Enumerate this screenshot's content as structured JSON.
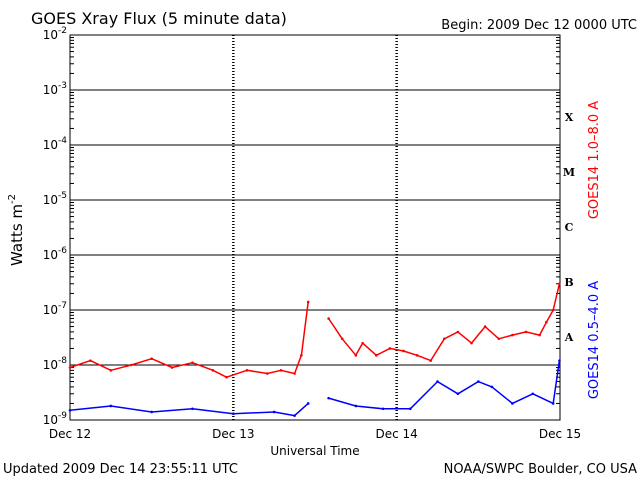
{
  "chart_data": {
    "type": "line",
    "title": "GOES Xray Flux (5 minute data)",
    "begin_label": "Begin:  2009 Dec 12 0000 UTC",
    "xlabel": "Universal Time",
    "ylabel_main": "Watts m",
    "ylabel_exp": "-2",
    "yscale": "log",
    "ylim": [
      1e-09,
      0.01
    ],
    "yticks": [
      {
        "exp": "-9",
        "value": 1e-09
      },
      {
        "exp": "-8",
        "value": 1e-08
      },
      {
        "exp": "-7",
        "value": 1e-07
      },
      {
        "exp": "-6",
        "value": 1e-06
      },
      {
        "exp": "-5",
        "value": 1e-05
      },
      {
        "exp": "-4",
        "value": 0.0001
      },
      {
        "exp": "-3",
        "value": 0.001
      },
      {
        "exp": "-2",
        "value": 0.01
      }
    ],
    "xlim": [
      "2009-12-12",
      "2009-12-15"
    ],
    "xticks": [
      {
        "label": "Dec 12",
        "value": "2009-12-12"
      },
      {
        "label": "Dec 13",
        "value": "2009-12-13"
      },
      {
        "label": "Dec 14",
        "value": "2009-12-14"
      },
      {
        "label": "Dec 15",
        "value": "2009-12-15"
      }
    ],
    "flare_classes": [
      {
        "label": "A",
        "value": 3.2e-08
      },
      {
        "label": "B",
        "value": 3.2e-07
      },
      {
        "label": "C",
        "value": 3.2e-06
      },
      {
        "label": "M",
        "value": 3.2e-05
      },
      {
        "label": "X",
        "value": 0.00032
      }
    ],
    "series": [
      {
        "name": "GOES14 1.0–8.0 A",
        "color": "#ff0000",
        "x": [
          "2009-12-12 00:00",
          "2009-12-12 03:00",
          "2009-12-12 06:00",
          "2009-12-12 09:00",
          "2009-12-12 12:00",
          "2009-12-12 15:00",
          "2009-12-12 18:00",
          "2009-12-12 21:00",
          "2009-12-12 23:00",
          "2009-12-13 02:00",
          "2009-12-13 05:00",
          "2009-12-13 07:00",
          "2009-12-13 09:00",
          "2009-12-13 10:00",
          "2009-12-13 11:00",
          "2009-12-13 12:00",
          "2009-12-13 14:00",
          "2009-12-13 16:00",
          "2009-12-13 18:00",
          "2009-12-13 19:00",
          "2009-12-13 21:00",
          "2009-12-13 23:00",
          "2009-12-14 01:00",
          "2009-12-14 03:00",
          "2009-12-14 05:00",
          "2009-12-14 07:00",
          "2009-12-14 09:00",
          "2009-12-14 11:00",
          "2009-12-14 13:00",
          "2009-12-14 15:00",
          "2009-12-14 17:00",
          "2009-12-14 19:00",
          "2009-12-14 21:00",
          "2009-12-14 22:00",
          "2009-12-14 23:00",
          "2009-12-14 23:55"
        ],
        "values": [
          9e-09,
          1.2e-08,
          8e-09,
          1e-08,
          1.3e-08,
          9e-09,
          1.1e-08,
          8e-09,
          6e-09,
          8e-09,
          7e-09,
          8e-09,
          7e-09,
          1.5e-08,
          1.4e-07,
          null,
          7e-08,
          3e-08,
          1.5e-08,
          2.5e-08,
          1.5e-08,
          2e-08,
          1.8e-08,
          1.5e-08,
          1.2e-08,
          3e-08,
          4e-08,
          2.5e-08,
          5e-08,
          3e-08,
          3.5e-08,
          4e-08,
          3.5e-08,
          6e-08,
          1e-07,
          3e-07
        ]
      },
      {
        "name": "GOES14 0.5–4.0 A",
        "color": "#0000ff",
        "x": [
          "2009-12-12 00:00",
          "2009-12-12 06:00",
          "2009-12-12 12:00",
          "2009-12-12 18:00",
          "2009-12-13 00:00",
          "2009-12-13 06:00",
          "2009-12-13 09:00",
          "2009-12-13 11:00",
          "2009-12-13 12:00",
          "2009-12-13 14:00",
          "2009-12-13 18:00",
          "2009-12-13 22:00",
          "2009-12-14 02:00",
          "2009-12-14 06:00",
          "2009-12-14 09:00",
          "2009-12-14 12:00",
          "2009-12-14 14:00",
          "2009-12-14 17:00",
          "2009-12-14 20:00",
          "2009-12-14 23:00",
          "2009-12-14 23:55"
        ],
        "values": [
          1.5e-09,
          1.8e-09,
          1.4e-09,
          1.6e-09,
          1.3e-09,
          1.4e-09,
          1.2e-09,
          2e-09,
          null,
          2.5e-09,
          1.8e-09,
          1.6e-09,
          1.6e-09,
          5e-09,
          3e-09,
          5e-09,
          4e-09,
          2e-09,
          3e-09,
          2e-09,
          1.2e-08
        ]
      }
    ]
  },
  "footer": {
    "updated": "Updated 2009 Dec 14 23:55:11 UTC",
    "credit": "NOAA/SWPC Boulder, CO USA"
  }
}
